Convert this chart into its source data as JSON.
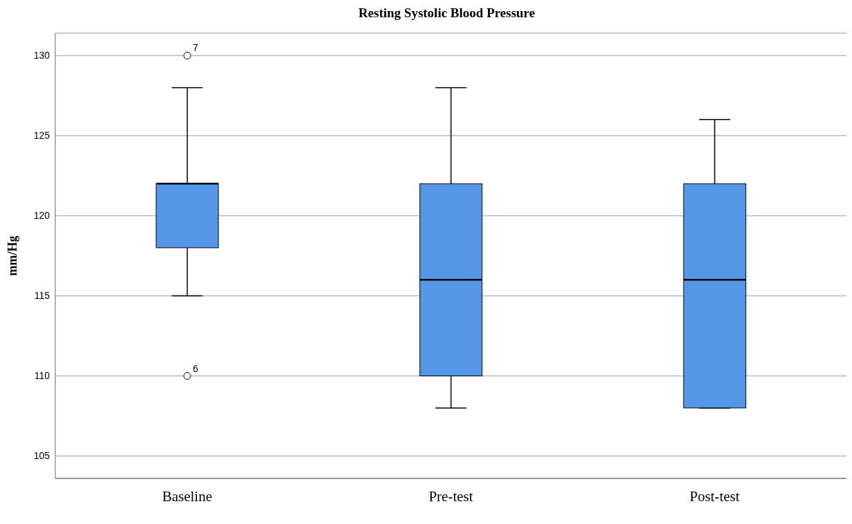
{
  "chart_data": {
    "type": "box",
    "title": "Resting Systolic Blood Pressure",
    "ylabel": "mm/Hg",
    "categories": [
      "Baseline",
      "Pre-test",
      "Post-test"
    ],
    "color": "#5596e6",
    "boxes": [
      {
        "low": 115,
        "q1": 118,
        "median": 122,
        "q3": 122,
        "high": 128,
        "outliers": [
          130,
          110
        ]
      },
      {
        "low": 108,
        "q1": 110,
        "median": 116,
        "q3": 122,
        "high": 128
      },
      {
        "low": 108,
        "q1": 108,
        "median": 116,
        "q3": 122,
        "high": 126
      }
    ],
    "annotations": [
      "7",
      "6"
    ],
    "ylim": [
      103.6,
      131.4
    ],
    "yticks": [
      105,
      110,
      115,
      120,
      125,
      130
    ],
    "grid": "y"
  }
}
